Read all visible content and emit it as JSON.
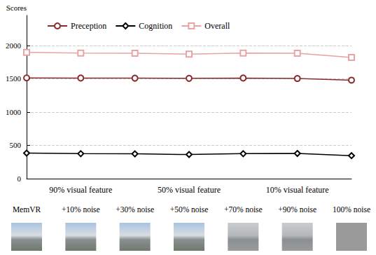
{
  "chart_data": {
    "type": "line",
    "y_label": "Scores",
    "categories": [
      "MemVR",
      "+10% noise",
      "+30% noise",
      "+50% noise",
      "+70% noise",
      "+90% noise",
      "100% noise"
    ],
    "series": [
      {
        "name": "Preception",
        "color": "#8b2c2c",
        "marker": "circle",
        "values": [
          1512,
          1510,
          1508,
          1505,
          1510,
          1503,
          1478
        ]
      },
      {
        "name": "Cognition",
        "color": "#000000",
        "marker": "diamond",
        "values": [
          383,
          375,
          372,
          362,
          375,
          378,
          345
        ]
      },
      {
        "name": "Overall",
        "color": "#e8a3a3",
        "marker": "square",
        "values": [
          1895,
          1885,
          1882,
          1868,
          1885,
          1882,
          1820
        ]
      }
    ],
    "annotations": [
      {
        "text": "90% visual feature",
        "category": "+10% noise"
      },
      {
        "text": "50% visual feature",
        "category": "+50% noise"
      },
      {
        "text": "10% visual feature",
        "category": "+90% noise"
      }
    ],
    "ylim": [
      0,
      2450
    ],
    "yticks": [
      0,
      500,
      1000,
      1500,
      2000
    ],
    "grid": true,
    "legend": "upper left"
  }
}
